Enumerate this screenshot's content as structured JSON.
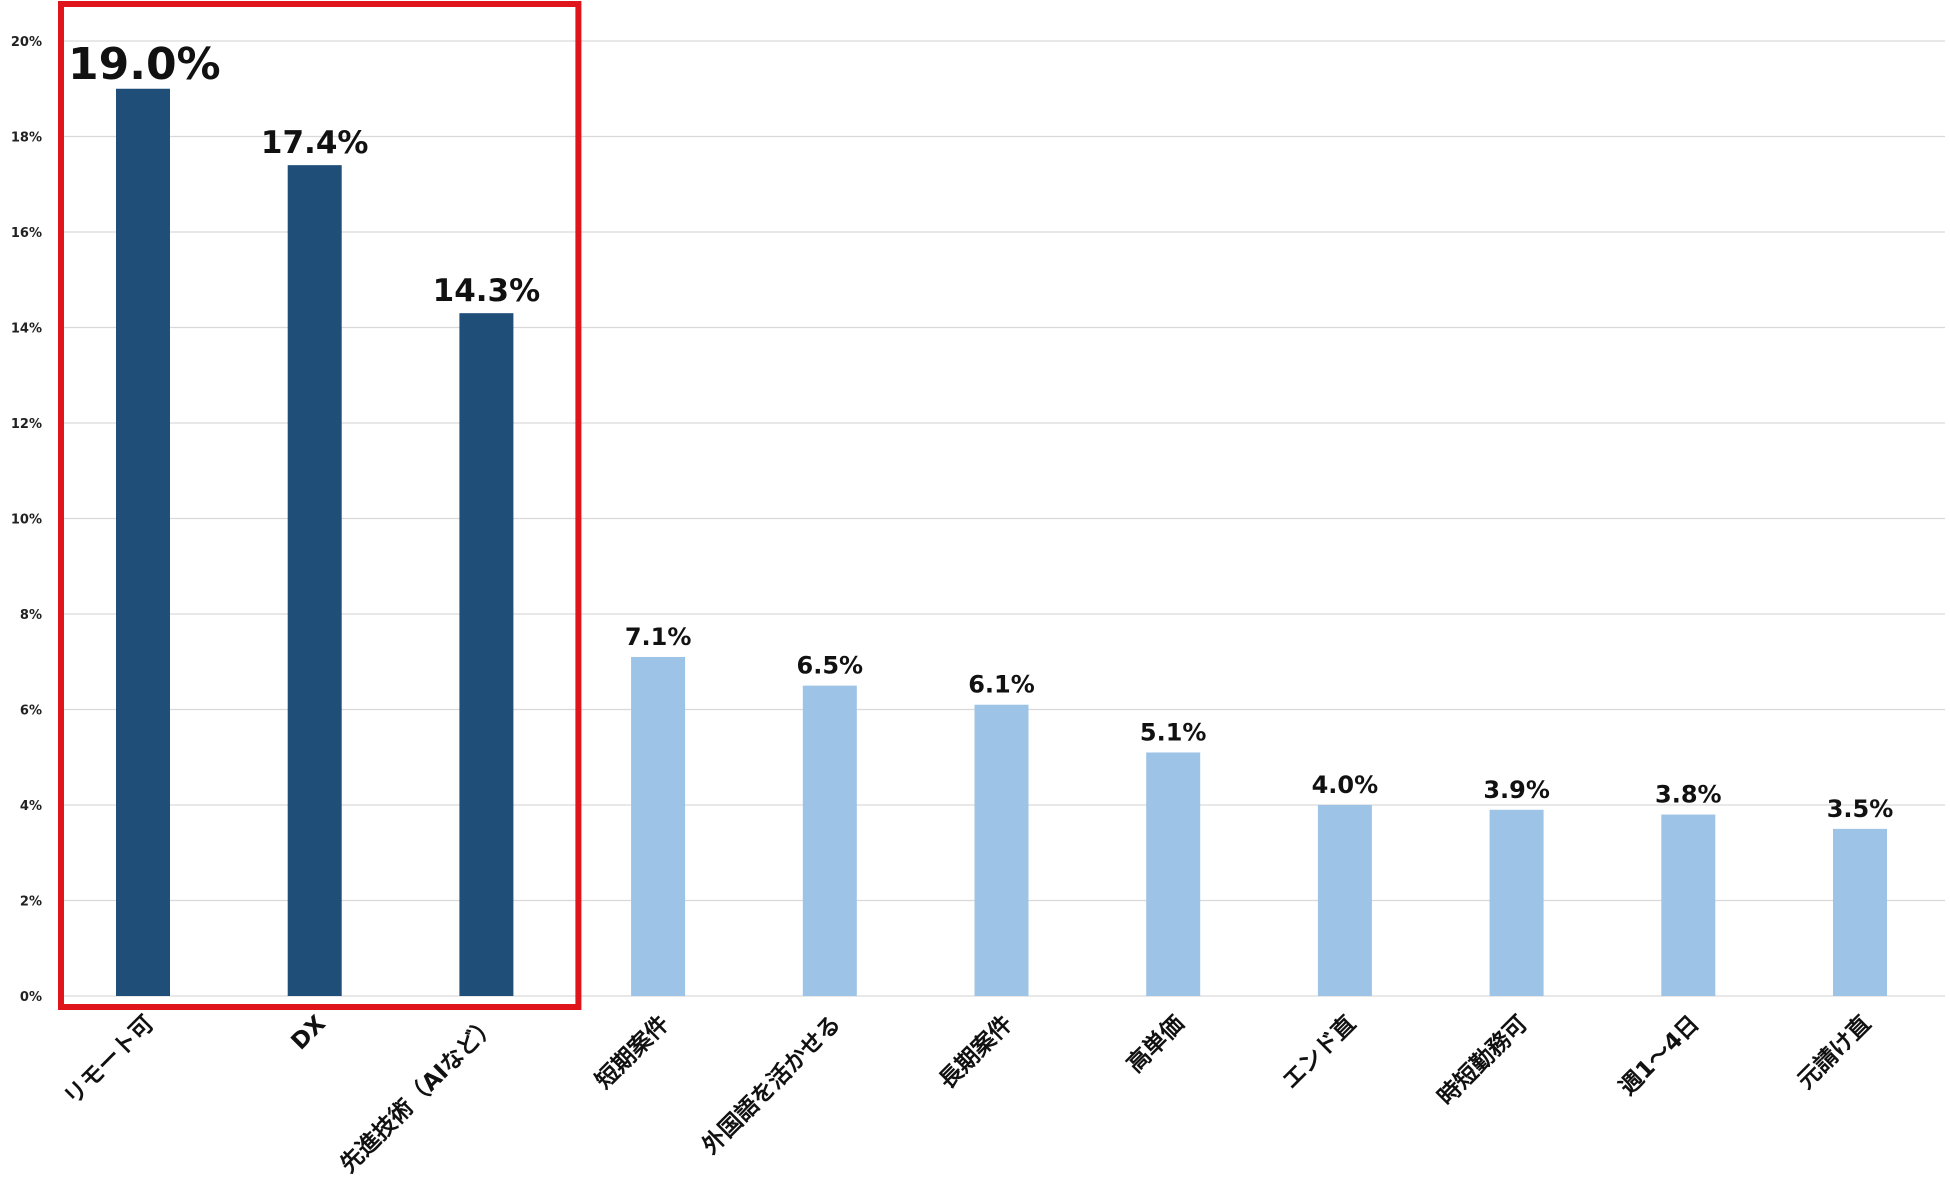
{
  "chart_data": {
    "type": "bar",
    "title": "",
    "xlabel": "",
    "ylabel": "",
    "ylim": [
      0,
      20
    ],
    "y_ticks": [
      0,
      2,
      4,
      6,
      8,
      10,
      12,
      14,
      16,
      18,
      20
    ],
    "y_tick_labels": [
      "0%",
      "2%",
      "4%",
      "6%",
      "8%",
      "10%",
      "12%",
      "14%",
      "16%",
      "18%",
      "20%"
    ],
    "grid": true,
    "legend": "none",
    "categories": [
      "リモート可",
      "DX",
      "先進技術（AIなど）",
      "短期案件",
      "外国語を活かせる",
      "長期案件",
      "高単価",
      "エンド直",
      "時短勤務可",
      "週1～4日",
      "元請け直"
    ],
    "values": [
      19.0,
      17.4,
      14.3,
      7.1,
      6.5,
      6.1,
      5.1,
      4.0,
      3.9,
      3.8,
      3.5
    ],
    "value_labels": [
      "19.0%",
      "17.4%",
      "14.3%",
      "7.1%",
      "6.5%",
      "6.1%",
      "5.1%",
      "4.0%",
      "3.9%",
      "3.8%",
      "3.5%"
    ],
    "highlight_count": 3,
    "colors": {
      "highlight_bar": "#1f4e79",
      "bar": "#9dc3e6",
      "highlight_box": "#e0141b",
      "top_label": "#e0141b",
      "grid": "#d9d9d9",
      "axis": "#d9d9d9"
    }
  }
}
